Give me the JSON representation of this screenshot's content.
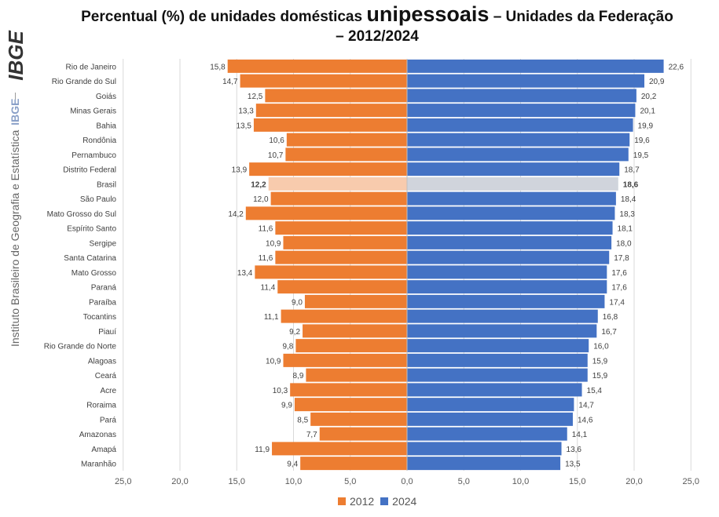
{
  "title": {
    "part1": "Percentual (%) de unidades domésticas",
    "highlight": "unipessoais",
    "part2": "– Unidades da Federação – 2012/2024"
  },
  "sidebar": {
    "logo_text": "IBGE",
    "institute": "Instituto Brasileiro de Geografia e Estatística",
    "short": "IBGE"
  },
  "chart_data": {
    "type": "bar",
    "orientation": "horizontal-butterfly",
    "categories": [
      "Rio de Janeiro",
      "Rio Grande do Sul",
      "Goiás",
      "Minas Gerais",
      "Bahia",
      "Rondônia",
      "Pernambuco",
      "Distrito Federal",
      "Brasil",
      "São Paulo",
      "Mato Grosso do Sul",
      "Espírito Santo",
      "Sergipe",
      "Santa Catarina",
      "Mato Grosso",
      "Paraná",
      "Paraíba",
      "Tocantins",
      "Piauí",
      "Rio Grande do Norte",
      "Alagoas",
      "Ceará",
      "Acre",
      "Roraima",
      "Pará",
      "Amazonas",
      "Amapá",
      "Maranhão"
    ],
    "series": [
      {
        "name": "2012",
        "color": "#ed7d31",
        "values": [
          15.8,
          14.7,
          12.5,
          13.3,
          13.5,
          10.6,
          10.7,
          13.9,
          12.2,
          12.0,
          14.2,
          11.6,
          10.9,
          11.6,
          13.4,
          11.4,
          9.0,
          11.1,
          9.2,
          9.8,
          10.9,
          8.9,
          10.3,
          9.9,
          8.5,
          7.7,
          11.9,
          9.4
        ]
      },
      {
        "name": "2024",
        "color": "#4472c4",
        "values": [
          22.6,
          20.9,
          20.2,
          20.1,
          19.9,
          19.6,
          19.5,
          18.7,
          18.6,
          18.4,
          18.3,
          18.1,
          18.0,
          17.8,
          17.6,
          17.6,
          17.4,
          16.8,
          16.7,
          16.0,
          15.9,
          15.9,
          15.4,
          14.7,
          14.6,
          14.1,
          13.6,
          13.5
        ]
      }
    ],
    "value_labels_2012": [
      "15,8",
      "14,7",
      "12,5",
      "13,3",
      "13,5",
      "10,6",
      "10,7",
      "13,9",
      "12,2",
      "12,0",
      "14,2",
      "11,6",
      "10,9",
      "11,6",
      "13,4",
      "11,4",
      "9,0",
      "11,1",
      "9,2",
      "9,8",
      "10,9",
      "8,9",
      "10,3",
      "9,9",
      "8,5",
      "7,7",
      "11,9",
      "9,4"
    ],
    "value_labels_2024": [
      "22,6",
      "20,9",
      "20,2",
      "20,1",
      "19,9",
      "19,6",
      "19,5",
      "18,7",
      "18,6",
      "18,4",
      "18,3",
      "18,1",
      "18,0",
      "17,8",
      "17,6",
      "17,6",
      "17,4",
      "16,8",
      "16,7",
      "16,0",
      "15,9",
      "15,9",
      "15,4",
      "14,7",
      "14,6",
      "14,1",
      "13,6",
      "13,5"
    ],
    "highlight_category": "Brasil",
    "highlight_colors": {
      "2012": "#f8cbad",
      "2024": "#d0d4dc"
    },
    "xlim": [
      -25,
      25
    ],
    "x_ticks": [
      "25,0",
      "20,0",
      "15,0",
      "10,0",
      "5,0",
      "0,0",
      "5,0",
      "10,0",
      "15,0",
      "20,0",
      "25,0"
    ],
    "grid": true,
    "legend_position": "bottom-center"
  }
}
